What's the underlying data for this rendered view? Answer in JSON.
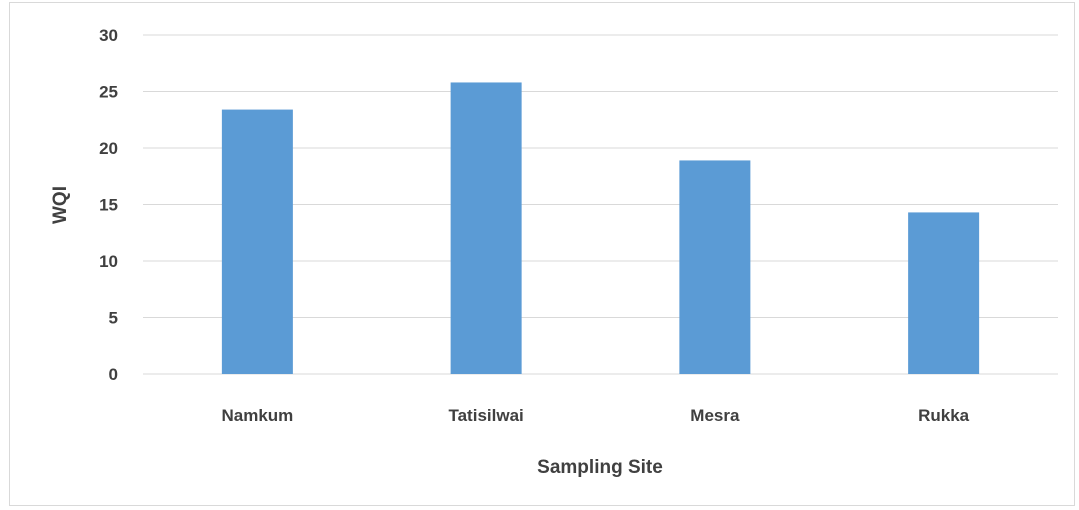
{
  "chart_data": {
    "type": "bar",
    "categories": [
      "Namkum",
      "Tatisilwai",
      "Mesra",
      "Rukka"
    ],
    "values": [
      23.4,
      25.8,
      18.9,
      14.3
    ],
    "xlabel": "Sampling Site",
    "ylabel": "WQI",
    "ylim": [
      0,
      30
    ],
    "yticks": [
      0,
      5,
      10,
      15,
      20,
      25,
      30
    ],
    "grid": true,
    "legend": "none",
    "bar_color": "#5b9bd5",
    "grid_color": "#d9d9d9"
  }
}
